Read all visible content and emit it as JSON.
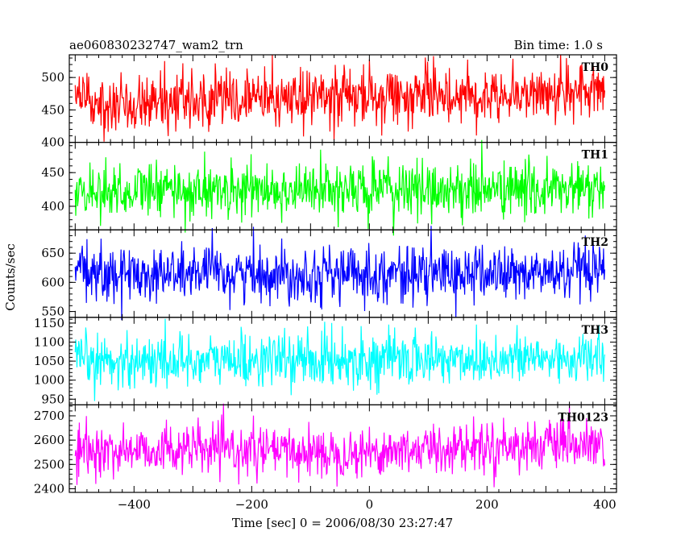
{
  "header": {
    "title": "ae060830232747_wam2_trn",
    "bin_time": "Bin time: 1.0 s"
  },
  "chart_data": {
    "type": "line",
    "xlabel": "Time [sec] 0 = 2006/08/30 23:27:47",
    "ylabel": "Counts/sec",
    "xlim": [
      -510,
      420
    ],
    "data_range": [
      -500,
      400
    ],
    "x_ticks": [
      -400,
      -200,
      0,
      200,
      400
    ],
    "x_tick_labels": [
      "−400",
      "−200",
      "0",
      "200",
      "400"
    ],
    "bin_time_s": 1.0,
    "panels": [
      {
        "name": "TH0",
        "color": "#ff0000",
        "ylim": [
          400,
          535
        ],
        "yticks": [
          400,
          450,
          500
        ],
        "ytick_labels": [
          "400",
          "450",
          "500"
        ],
        "mean": 462,
        "mean_end": 478,
        "noise": 22,
        "bump": 0
      },
      {
        "name": "TH1",
        "color": "#00ff00",
        "ylim": [
          365,
          495
        ],
        "yticks": [
          400,
          450
        ],
        "ytick_labels": [
          "400",
          "450"
        ],
        "mean": 423,
        "mean_end": 425,
        "noise": 21,
        "bump": 0
      },
      {
        "name": "TH2",
        "color": "#0000ff",
        "ylim": [
          540,
          690
        ],
        "yticks": [
          550,
          600,
          650
        ],
        "ytick_labels": [
          "550",
          "600",
          "650"
        ],
        "mean": 615,
        "mean_end": 615,
        "noise": 24,
        "bump": 0
      },
      {
        "name": "TH3",
        "color": "#00ffff",
        "ylim": [
          935,
          1165
        ],
        "yticks": [
          950,
          1000,
          1050,
          1100,
          1150
        ],
        "ytick_labels": [
          "950",
          "1000",
          "1050",
          "1100",
          "1150"
        ],
        "mean": 1050,
        "mean_end": 1058,
        "noise": 35,
        "bump": 0
      },
      {
        "name": "TH0123",
        "color": "#ff00ff",
        "ylim": [
          2385,
          2745
        ],
        "yticks": [
          2400,
          2500,
          2600,
          2700
        ],
        "ytick_labels": [
          "2400",
          "2500",
          "2600",
          "2700"
        ],
        "mean": 2548,
        "mean_end": 2572,
        "noise": 50,
        "bump": 10
      }
    ]
  }
}
